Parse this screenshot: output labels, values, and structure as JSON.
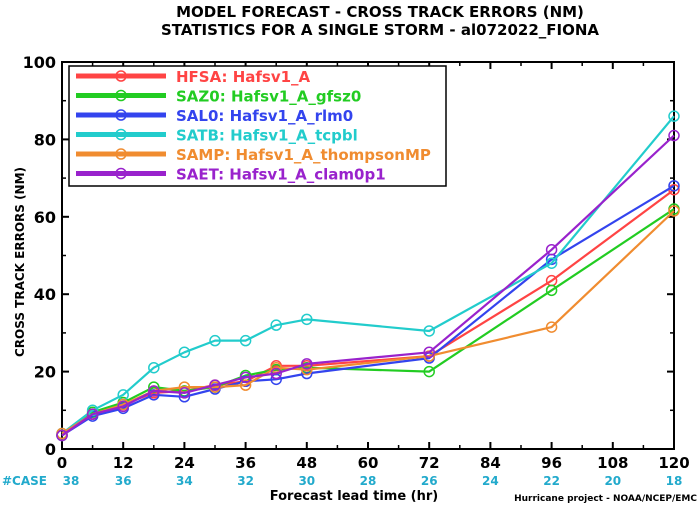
{
  "chart_data": {
    "type": "line",
    "title": "MODEL FORECAST - CROSS TRACK ERRORS (NM)",
    "subtitle": "STATISTICS FOR A SINGLE STORM - al072022_FIONA",
    "xlabel": "Forecast lead time (hr)",
    "ylabel": "CROSS TRACK ERRORS (NM)",
    "xlim": [
      0,
      120
    ],
    "ylim": [
      0,
      100
    ],
    "x_ticks": [
      0,
      12,
      24,
      36,
      48,
      60,
      72,
      84,
      96,
      108,
      120
    ],
    "y_ticks": [
      0,
      20,
      40,
      60,
      80,
      100
    ],
    "grid": false,
    "legend_position": "top-left",
    "cases_label": "#CASE",
    "cases": [
      38,
      36,
      34,
      32,
      30,
      28,
      26,
      24,
      22,
      20,
      18
    ],
    "credit": "Hurricane project - NOAA/NCEP/EMC",
    "series": [
      {
        "name": "HFSA:  Hafsv1_A",
        "color": "#ff4444",
        "x": [
          0,
          6,
          12,
          18,
          24,
          30,
          36,
          42,
          48,
          72,
          96,
          120
        ],
        "y": [
          3.5,
          9,
          11.5,
          14.5,
          15,
          16.5,
          17.5,
          21.5,
          21.5,
          24,
          43.5,
          67
        ]
      },
      {
        "name": "SAZ0:  Hafsv1_A_gfsz0",
        "color": "#22cc22",
        "x": [
          0,
          6,
          12,
          18,
          24,
          30,
          36,
          42,
          48,
          72,
          96,
          120
        ],
        "y": [
          3.5,
          9.5,
          12,
          16,
          15,
          16,
          19,
          20.5,
          21,
          20,
          41,
          62
        ]
      },
      {
        "name": "SAL0:  Hafsv1_A_rlm0",
        "color": "#3344ee",
        "x": [
          0,
          6,
          12,
          18,
          24,
          30,
          36,
          42,
          48,
          72,
          96,
          120
        ],
        "y": [
          3.5,
          8.5,
          10.5,
          14,
          13.5,
          15.5,
          17.5,
          18,
          19.5,
          23.5,
          49,
          68
        ]
      },
      {
        "name": "SATB:  Hafsv1_A_tcpbl",
        "color": "#22cccc",
        "x": [
          0,
          6,
          12,
          18,
          24,
          30,
          36,
          42,
          48,
          72,
          96,
          120
        ],
        "y": [
          4,
          10,
          14,
          21,
          25,
          28,
          28,
          32,
          33.5,
          30.5,
          48,
          86
        ]
      },
      {
        "name": "SAMP:  Hafsv1_A_thompsonMP",
        "color": "#f08c30",
        "x": [
          0,
          6,
          12,
          18,
          24,
          30,
          36,
          42,
          48,
          72,
          96,
          120
        ],
        "y": [
          4,
          9,
          11.5,
          15,
          16,
          16,
          16.5,
          21,
          20.5,
          24,
          31.5,
          61.5
        ]
      },
      {
        "name": "SAET:  Hafsv1_A_clam0p1",
        "color": "#9922cc",
        "x": [
          0,
          6,
          12,
          18,
          24,
          30,
          36,
          42,
          48,
          72,
          96,
          120
        ],
        "y": [
          3.5,
          9,
          11,
          15,
          14.5,
          16.5,
          18.5,
          19.5,
          22,
          25,
          51.5,
          81
        ]
      }
    ]
  }
}
